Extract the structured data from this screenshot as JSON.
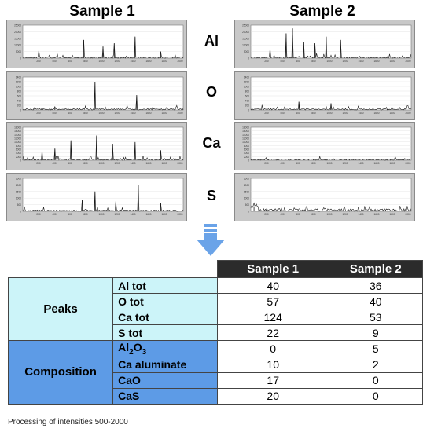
{
  "titles": {
    "sample1": "Sample 1",
    "sample2": "Sample 2"
  },
  "elements": [
    "Al",
    "O",
    "Ca",
    "S"
  ],
  "panels": {
    "x_ticks": [
      "200",
      "400",
      "600",
      "800",
      "1000",
      "1200",
      "1400",
      "1600",
      "1800",
      "2000"
    ],
    "sample1": [
      {
        "element": "Al",
        "y_ticks": [
          "25000",
          "20000",
          "15000",
          "10000",
          "5000",
          "0"
        ]
      },
      {
        "element": "O",
        "y_ticks": [
          "1400",
          "1200",
          "1000",
          "800",
          "600",
          "400",
          "200",
          "0"
        ]
      },
      {
        "element": "Ca",
        "y_ticks": [
          "18000",
          "16000",
          "14000",
          "12000",
          "10000",
          "8000",
          "6000",
          "4000",
          "2000",
          "0"
        ]
      },
      {
        "element": "S",
        "y_ticks": [
          "2500",
          "2000",
          "1500",
          "1000",
          "500",
          "0"
        ]
      }
    ],
    "sample2": [
      {
        "element": "Al",
        "y_ticks": [
          "25000",
          "20000",
          "15000",
          "10000",
          "5000",
          "0"
        ]
      },
      {
        "element": "O",
        "y_ticks": [
          "1400",
          "1200",
          "1000",
          "800",
          "600",
          "400",
          "200",
          "0"
        ]
      },
      {
        "element": "Ca",
        "y_ticks": [
          "18000",
          "16000",
          "14000",
          "12000",
          "10000",
          "8000",
          "6000",
          "4000",
          "2000",
          "0"
        ]
      },
      {
        "element": "S",
        "y_ticks": [
          "2500",
          "2000",
          "1500",
          "1000",
          "500",
          "0"
        ]
      }
    ]
  },
  "chart_data": {
    "type": "table",
    "columns": [
      "Sample 1",
      "Sample 2"
    ],
    "groups": [
      {
        "name": "Peaks",
        "rows": [
          {
            "label": "Al tot",
            "values": [
              40,
              36
            ]
          },
          {
            "label": "O tot",
            "values": [
              57,
              40
            ]
          },
          {
            "label": "Ca tot",
            "values": [
              124,
              53
            ]
          },
          {
            "label": "S tot",
            "values": [
              22,
              9
            ]
          }
        ]
      },
      {
        "name": "Composition",
        "rows": [
          {
            "label": "Al2O3",
            "values": [
              0,
              5
            ]
          },
          {
            "label": "Ca aluminate",
            "values": [
              10,
              2
            ]
          },
          {
            "label": "CaO",
            "values": [
              17,
              0
            ]
          },
          {
            "label": "CaS",
            "values": [
              20,
              0
            ]
          }
        ]
      }
    ]
  },
  "footnote": "Processing of intensities 500-2000",
  "colors": {
    "peaks_fill": "#ccf4f9",
    "composition_fill": "#5d9be6",
    "header_fill": "#2b2b2b",
    "arrow": "#6aa3e8",
    "panel_bg": "#c8c8c8"
  }
}
